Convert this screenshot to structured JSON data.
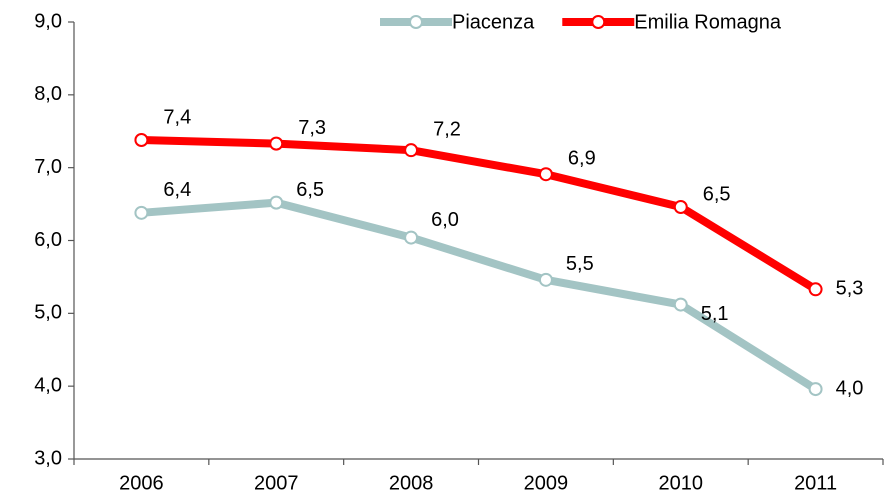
{
  "chart_data": {
    "type": "line",
    "categories": [
      "2006",
      "2007",
      "2008",
      "2009",
      "2010",
      "2011"
    ],
    "series": [
      {
        "name": "Piacenza",
        "color": "#a3c4c4",
        "values": [
          6.38,
          6.52,
          6.04,
          5.46,
          5.12,
          3.96
        ],
        "value_labels": [
          "6,4",
          "6,5",
          "6,0",
          "5,5",
          "5,1",
          "4,0"
        ]
      },
      {
        "name": "Emilia Romagna",
        "color": "#ff0000",
        "values": [
          7.38,
          7.33,
          7.24,
          6.91,
          6.46,
          5.33
        ],
        "value_labels": [
          "7,4",
          "7,3",
          "7,2",
          "6,9",
          "6,5",
          "5,3"
        ]
      }
    ],
    "ylim": [
      3,
      9
    ],
    "yticks": [
      {
        "value": 3,
        "label": "3,0"
      },
      {
        "value": 4,
        "label": "4,0"
      },
      {
        "value": 5,
        "label": "5,0"
      },
      {
        "value": 6,
        "label": "6,0"
      },
      {
        "value": 7,
        "label": "7,0"
      },
      {
        "value": 8,
        "label": "8,0"
      },
      {
        "value": 9,
        "label": "9,0"
      }
    ],
    "legend": "top-right",
    "grid": false
  }
}
